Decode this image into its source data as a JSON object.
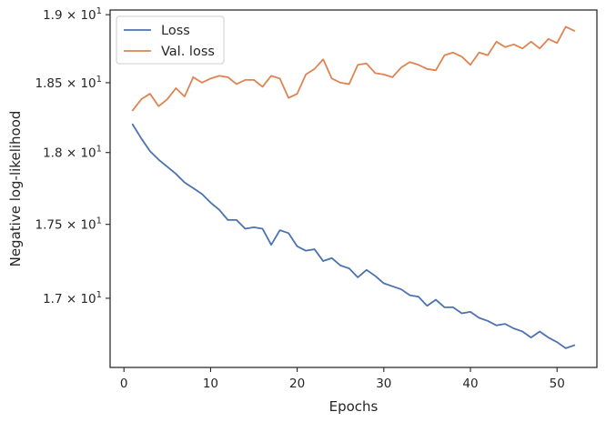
{
  "chart_data": {
    "type": "line",
    "title": "",
    "xlabel": "Epochs",
    "ylabel": "Negative log-likelihood",
    "xlim": [
      -1.6,
      54.6
    ],
    "ylim": [
      16.545,
      19.035
    ],
    "y_scale": "log",
    "x_ticks": [
      0,
      10,
      20,
      30,
      40,
      50
    ],
    "x_tick_labels": [
      "0",
      "10",
      "20",
      "30",
      "40",
      "50"
    ],
    "y_ticks": [
      17.0,
      17.5,
      18.0,
      18.5,
      19.0
    ],
    "y_tick_labels": [
      {
        "mantissa": "1.7",
        "exp": "1"
      },
      {
        "mantissa": "1.75",
        "exp": "1"
      },
      {
        "mantissa": "1.8",
        "exp": "1"
      },
      {
        "mantissa": "1.85",
        "exp": "1"
      },
      {
        "mantissa": "1.9",
        "exp": "1"
      }
    ],
    "grid": false,
    "legend_position": "top-left",
    "x": [
      1,
      2,
      3,
      4,
      5,
      6,
      7,
      8,
      9,
      10,
      11,
      12,
      13,
      14,
      15,
      16,
      17,
      18,
      19,
      20,
      21,
      22,
      23,
      24,
      25,
      26,
      27,
      28,
      29,
      30,
      31,
      32,
      33,
      34,
      35,
      36,
      37,
      38,
      39,
      40,
      41,
      42,
      43,
      44,
      45,
      46,
      47,
      48,
      49,
      50,
      51,
      52
    ],
    "series": [
      {
        "name": "Loss",
        "color": "#4c72b0",
        "values": [
          18.2,
          18.1,
          18.01,
          17.95,
          17.9,
          17.85,
          17.79,
          17.75,
          17.71,
          17.65,
          17.6,
          17.53,
          17.53,
          17.47,
          17.48,
          17.47,
          17.36,
          17.46,
          17.44,
          17.35,
          17.32,
          17.33,
          17.25,
          17.27,
          17.22,
          17.2,
          17.14,
          17.19,
          17.15,
          17.1,
          17.08,
          17.06,
          17.02,
          17.01,
          16.95,
          16.99,
          16.94,
          16.94,
          16.9,
          16.91,
          16.87,
          16.85,
          16.82,
          16.83,
          16.8,
          16.78,
          16.74,
          16.78,
          16.74,
          16.71,
          16.67,
          16.69
        ]
      },
      {
        "name": "Val. loss",
        "color": "#dd8452",
        "values": [
          18.3,
          18.38,
          18.42,
          18.33,
          18.38,
          18.46,
          18.4,
          18.54,
          18.5,
          18.53,
          18.55,
          18.54,
          18.49,
          18.52,
          18.52,
          18.47,
          18.55,
          18.53,
          18.39,
          18.42,
          18.56,
          18.6,
          18.67,
          18.53,
          18.5,
          18.49,
          18.63,
          18.64,
          18.57,
          18.56,
          18.54,
          18.61,
          18.65,
          18.63,
          18.6,
          18.59,
          18.7,
          18.72,
          18.69,
          18.63,
          18.72,
          18.7,
          18.8,
          18.76,
          18.78,
          18.75,
          18.8,
          18.75,
          18.82,
          18.79,
          18.91,
          18.88
        ]
      }
    ]
  }
}
